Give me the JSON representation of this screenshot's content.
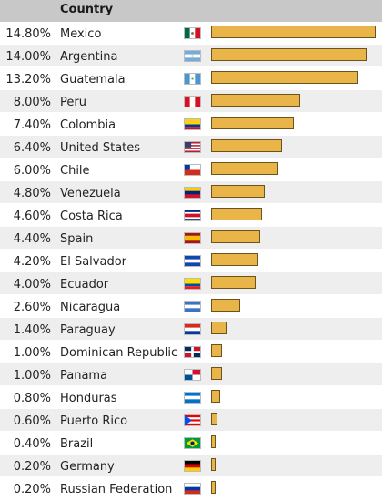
{
  "header": {
    "country_label": "Country"
  },
  "chart_data": {
    "type": "bar",
    "orientation": "horizontal",
    "title": "",
    "xlabel": "",
    "ylabel": "Country",
    "xlim": [
      0,
      14.8
    ],
    "categories": [
      "Mexico",
      "Argentina",
      "Guatemala",
      "Peru",
      "Colombia",
      "United States",
      "Chile",
      "Venezuela",
      "Costa Rica",
      "Spain",
      "El Salvador",
      "Ecuador",
      "Nicaragua",
      "Paraguay",
      "Dominican Republic",
      "Panama",
      "Honduras",
      "Puerto Rico",
      "Brazil",
      "Germany",
      "Russian Federation"
    ],
    "values": [
      14.8,
      14.0,
      13.2,
      8.0,
      7.4,
      6.4,
      6.0,
      4.8,
      4.6,
      4.4,
      4.2,
      4.0,
      2.6,
      1.4,
      1.0,
      1.0,
      0.8,
      0.6,
      0.4,
      0.2,
      0.2
    ],
    "labels": [
      "14.80%",
      "14.00%",
      "13.20%",
      "8.00%",
      "7.40%",
      "6.40%",
      "6.00%",
      "4.80%",
      "4.60%",
      "4.40%",
      "4.20%",
      "4.00%",
      "2.60%",
      "1.40%",
      "1.00%",
      "1.00%",
      "0.80%",
      "0.60%",
      "0.40%",
      "0.20%",
      "0.20%"
    ],
    "flags": [
      "mexico-flag-icon",
      "argentina-flag-icon",
      "guatemala-flag-icon",
      "peru-flag-icon",
      "colombia-flag-icon",
      "united-states-flag-icon",
      "chile-flag-icon",
      "venezuela-flag-icon",
      "costa-rica-flag-icon",
      "spain-flag-icon",
      "el-salvador-flag-icon",
      "ecuador-flag-icon",
      "nicaragua-flag-icon",
      "paraguay-flag-icon",
      "dominican-republic-flag-icon",
      "panama-flag-icon",
      "honduras-flag-icon",
      "puerto-rico-flag-icon",
      "brazil-flag-icon",
      "germany-flag-icon",
      "russia-flag-icon"
    ],
    "bar_color": "#e9b448",
    "bar_border_color": "#6b5320",
    "grid": false,
    "legend": "none"
  }
}
